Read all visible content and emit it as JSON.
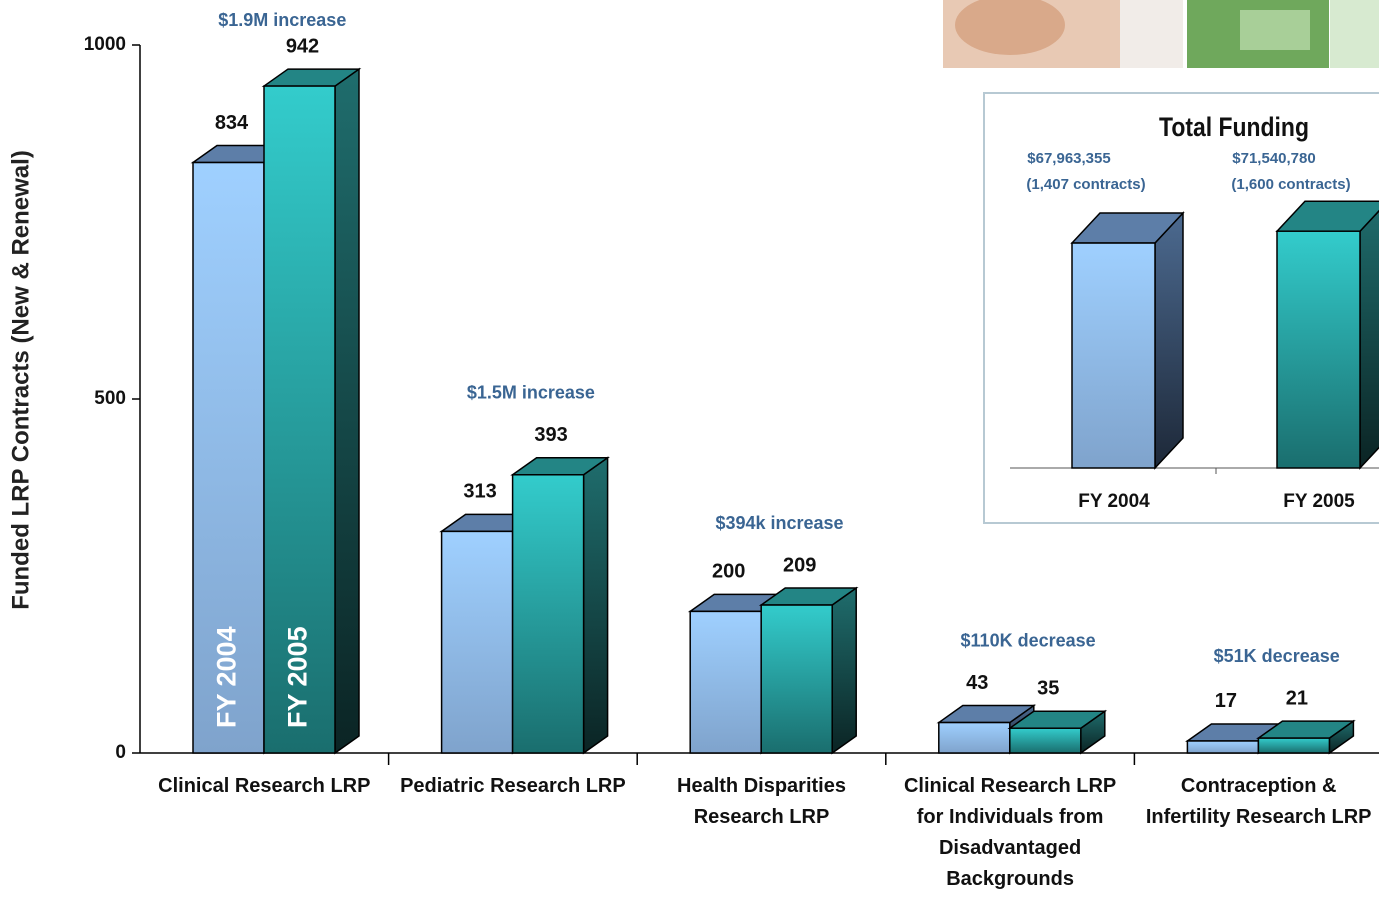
{
  "chart_data": [
    {
      "type": "bar3d",
      "y_label": "Funded LRP Contracts (New & Renewal)",
      "categories": [
        "Clinical Research LRP",
        "Pediatric Research LRP",
        "Health Disparities Research LRP",
        "Clinical Research LRP for Individuals from Disadvantaged Backgrounds",
        "Contraception & Infertility Research LRP"
      ],
      "series": [
        {
          "name": "FY 2004",
          "color": "#99ccff",
          "values": [
            834,
            313,
            200,
            43,
            17
          ]
        },
        {
          "name": "FY 2005",
          "color": "#33cccc",
          "values": [
            942,
            393,
            209,
            35,
            21
          ]
        }
      ],
      "annotations": [
        "$1.9M increase",
        "$1.5M increase",
        "$394k increase",
        "$110K decrease",
        "$51K decrease"
      ],
      "ylim": [
        0,
        1000
      ],
      "yticks": [
        0,
        500,
        1000
      ]
    },
    {
      "type": "bar3d_inset",
      "title": "Total Funding",
      "categories": [
        "FY 2004",
        "FY 2005"
      ],
      "values": [
        67963355,
        71540780
      ],
      "value_labels": [
        "$67,963,355",
        "$71,540,780"
      ],
      "contract_labels": [
        "(1,407 contracts)",
        "(1,600 contracts)"
      ],
      "colors": [
        "#99ccff",
        "#33cccc"
      ]
    }
  ]
}
